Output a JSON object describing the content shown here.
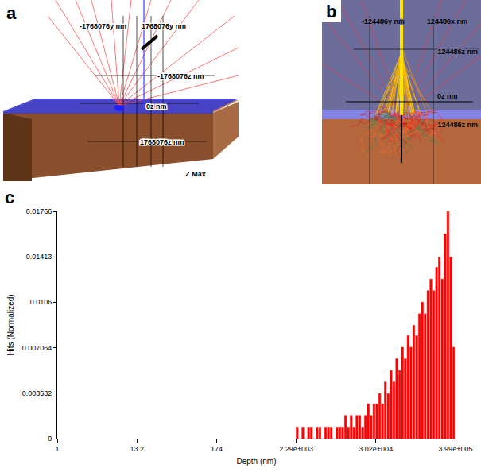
{
  "panels": {
    "a": {
      "letter": "a",
      "labels": [
        "-1768076y nm",
        "1768076y nm",
        "-1768076z nm",
        "0z nm",
        "1768076z nm"
      ],
      "caption": "Z Max"
    },
    "b": {
      "letter": "b",
      "labels": [
        "-124486y nm",
        "124486x nm",
        "-124486z nm",
        "0z nm",
        "124486z nm"
      ]
    }
  },
  "chart_data": {
    "panel": "c",
    "type": "histogram",
    "xlabel": "Depth (nm)",
    "ylabel": "Hits (Normalized)",
    "color": "#ff0000",
    "log": "x",
    "grid": false,
    "xlim": [
      1,
      399000
    ],
    "xticks": [
      1,
      13.2,
      174,
      {
        "value": 2290,
        "label": "2.29e+003"
      },
      {
        "value": 30200,
        "label": "3.02e+004"
      },
      {
        "value": 399000,
        "label": "3.99e+005"
      }
    ],
    "ylim": [
      0,
      0.01766
    ],
    "yticks": [
      0,
      0.003532,
      0.007064,
      0.0106,
      0.01413,
      0.01766
    ],
    "bins": [
      2291,
      2512,
      2754,
      3020,
      3311,
      3631,
      3981,
      4365,
      4786,
      5248,
      5754,
      6310,
      6918,
      7586,
      8318,
      9120,
      10000,
      10965,
      12023,
      13183,
      14454,
      15849,
      17378,
      19055,
      20893,
      22909,
      25119,
      27542,
      30200,
      33113,
      36308,
      39811,
      43652,
      47863,
      52481,
      57544,
      63096,
      69183,
      75858,
      83176,
      91201,
      100000,
      109648,
      120226,
      131826,
      144544,
      158489,
      173780,
      190546,
      208930,
      229087,
      251189,
      275423,
      301995,
      331131,
      363078,
      398107
    ],
    "counts": [
      0.0009,
      0,
      0.0009,
      0,
      0.0009,
      0.0009,
      0,
      0.0009,
      0.0009,
      0,
      0.0009,
      0.0009,
      0.0009,
      0,
      0.0009,
      0.0009,
      0.0009,
      0.0018,
      0.0009,
      0.0018,
      0.0009,
      0.0018,
      0.0018,
      0.0009,
      0.0018,
      0.0027,
      0.0018,
      0.0027,
      0.0027,
      0.0035,
      0.0027,
      0.0044,
      0.0035,
      0.0053,
      0.0044,
      0.0062,
      0.0053,
      0.0071,
      0.0062,
      0.008,
      0.0071,
      0.0088,
      0.008,
      0.0097,
      0.0106,
      0.0097,
      0.0115,
      0.0124,
      0.0115,
      0.0133,
      0.0141,
      0.0124,
      0.0159,
      0.0177,
      0.0141,
      0.0071
    ]
  }
}
